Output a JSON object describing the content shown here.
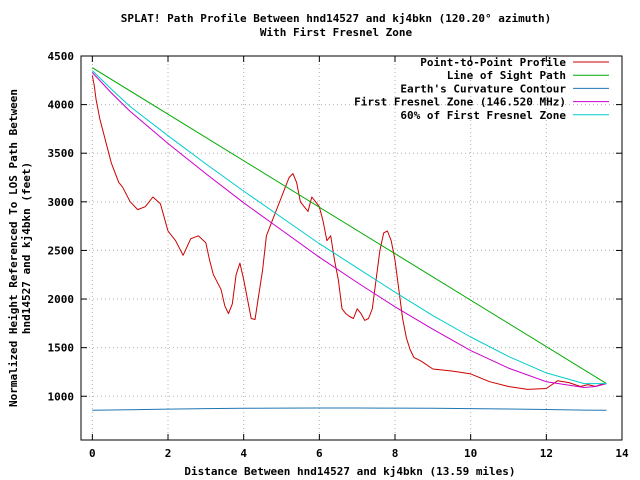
{
  "chart_data": {
    "type": "line",
    "title": "SPLAT! Path Profile Between hnd14527 and kj4bkn (120.20° azimuth)",
    "subtitle": "With First Fresnel Zone",
    "xlabel": "Distance Between hnd14527 and kj4bkn (13.59 miles)",
    "ylabel": [
      "Normalized Height Referenced To LOS Path Between",
      "hnd14527 and kj4bkn (feet)"
    ],
    "xlim": [
      -0.3,
      14
    ],
    "ylim": [
      550,
      4500
    ],
    "x_ticks": [
      0,
      2,
      4,
      6,
      8,
      10,
      12,
      14
    ],
    "y_ticks": [
      1000,
      1500,
      2000,
      2500,
      3000,
      3500,
      4000,
      4500
    ],
    "grid": true,
    "legend_position": "top-right",
    "series": [
      {
        "name": "Point-to-Point Profile",
        "color": "#cc0000",
        "x": [
          0,
          0.05,
          0.1,
          0.2,
          0.3,
          0.4,
          0.5,
          0.6,
          0.7,
          0.8,
          1.0,
          1.2,
          1.4,
          1.6,
          1.8,
          2.0,
          2.2,
          2.4,
          2.6,
          2.8,
          3.0,
          3.1,
          3.2,
          3.4,
          3.5,
          3.6,
          3.7,
          3.8,
          3.9,
          4.0,
          4.2,
          4.3,
          4.5,
          4.6,
          4.8,
          5.0,
          5.1,
          5.2,
          5.3,
          5.4,
          5.5,
          5.6,
          5.7,
          5.8,
          5.9,
          6.0,
          6.1,
          6.2,
          6.3,
          6.4,
          6.5,
          6.6,
          6.7,
          6.8,
          6.9,
          7.0,
          7.1,
          7.2,
          7.3,
          7.4,
          7.5,
          7.6,
          7.7,
          7.8,
          7.9,
          8.0,
          8.1,
          8.2,
          8.3,
          8.4,
          8.5,
          8.7,
          9.0,
          9.5,
          10.0,
          10.5,
          11.0,
          11.5,
          12.0,
          12.3,
          12.6,
          12.9,
          13.1,
          13.3,
          13.5
        ],
        "y": [
          4300,
          4200,
          4050,
          3850,
          3700,
          3550,
          3400,
          3300,
          3200,
          3150,
          3000,
          2920,
          2950,
          3050,
          2980,
          2700,
          2600,
          2450,
          2620,
          2650,
          2580,
          2400,
          2250,
          2100,
          1930,
          1850,
          1950,
          2250,
          2370,
          2200,
          1800,
          1790,
          2300,
          2650,
          2850,
          3050,
          3150,
          3250,
          3290,
          3200,
          3000,
          2950,
          2900,
          3050,
          3000,
          2950,
          2800,
          2600,
          2650,
          2400,
          2200,
          1900,
          1850,
          1820,
          1800,
          1900,
          1850,
          1780,
          1800,
          1900,
          2200,
          2500,
          2680,
          2700,
          2600,
          2400,
          2100,
          1800,
          1600,
          1480,
          1400,
          1360,
          1280,
          1260,
          1230,
          1150,
          1100,
          1070,
          1080,
          1160,
          1140,
          1100,
          1120,
          1100,
          1130
        ]
      },
      {
        "name": "Line of Sight Path",
        "color": "#00aa00",
        "x": [
          0,
          13.59
        ],
        "y": [
          4380,
          1130
        ]
      },
      {
        "name": "Earth's Curvature Contour",
        "color": "#1f77b4",
        "x": [
          0,
          1,
          2,
          3,
          4,
          5,
          6,
          7,
          8,
          9,
          10,
          11,
          12,
          13,
          13.59
        ],
        "y": [
          856,
          862,
          868,
          873,
          876,
          878,
          879,
          879,
          878,
          876,
          873,
          869,
          864,
          858,
          855
        ]
      },
      {
        "name": "First Fresnel Zone (146.520 MHz)",
        "color": "#cc00cc",
        "x": [
          0,
          0.5,
          1,
          2,
          3,
          4,
          5,
          6,
          7,
          8,
          9,
          10,
          11,
          12,
          13,
          13.3,
          13.59
        ],
        "y": [
          4330,
          4120,
          3930,
          3600,
          3290,
          2990,
          2710,
          2430,
          2170,
          1920,
          1690,
          1470,
          1290,
          1150,
          1090,
          1100,
          1130
        ]
      },
      {
        "name": "60% of First Fresnel Zone",
        "color": "#00cccc",
        "x": [
          0,
          0.5,
          1,
          2,
          3,
          4,
          5,
          6,
          7,
          8,
          9,
          10,
          11,
          12,
          13,
          13.59
        ],
        "y": [
          4350,
          4160,
          3980,
          3680,
          3390,
          3110,
          2840,
          2570,
          2320,
          2070,
          1830,
          1610,
          1410,
          1240,
          1130,
          1130
        ]
      }
    ]
  }
}
